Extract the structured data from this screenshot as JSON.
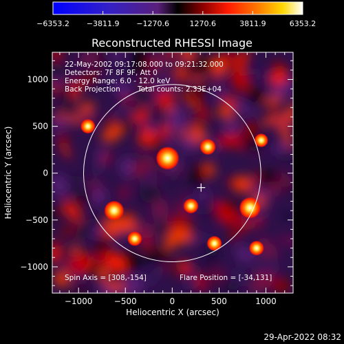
{
  "chart_data": {
    "type": "heatmap",
    "title": "Reconstructed RHESSI Image",
    "xlabel": "Heliocentric X (arcsec)",
    "ylabel": "Heliocentric Y (arcsec)",
    "xlim": [
      -1280,
      1290
    ],
    "ylim": [
      -1280,
      1290
    ],
    "x_ticks": [
      -1000,
      -500,
      0,
      500,
      1000
    ],
    "x_tick_labels": [
      "−1000",
      "−500",
      "0",
      "500",
      "1000"
    ],
    "y_ticks": [
      -1000,
      -500,
      0,
      500,
      1000
    ],
    "y_tick_labels": [
      "−1000",
      "−500",
      "0",
      "500",
      "1000"
    ],
    "colorbar": {
      "min": -6353.2,
      "max": 6353.2,
      "ticks": [
        -6353.2,
        -3811.9,
        -1270.6,
        1270.6,
        3811.9,
        6353.2
      ],
      "tick_labels": [
        "−6353.2",
        "−3811.9",
        "−1270.6",
        "1270.6",
        "3811.9",
        "6353.2"
      ]
    },
    "solar_limb_radius_arcsec": 946,
    "flare_marker": [
      308,
      -154
    ],
    "bright_sources": [
      {
        "x": -50,
        "y": 160,
        "value": 6353.2
      },
      {
        "x": 830,
        "y": -370,
        "value": 5500
      },
      {
        "x": -620,
        "y": -400,
        "value": 4800
      },
      {
        "x": 380,
        "y": 280,
        "value": 3000
      },
      {
        "x": 200,
        "y": -350,
        "value": 2600
      },
      {
        "x": -900,
        "y": 500,
        "value": 2400
      },
      {
        "x": -400,
        "y": -700,
        "value": 2400
      },
      {
        "x": 450,
        "y": -750,
        "value": 2600
      },
      {
        "x": 900,
        "y": -800,
        "value": 2500
      },
      {
        "x": 950,
        "y": 350,
        "value": 2000
      }
    ],
    "grid": false,
    "legend": "none"
  },
  "annotations": {
    "line1": "22-May-2002 09:17:08.000 to 09:21:32.000",
    "line2": "Detectors: 7F 8F 9F, Att 0",
    "line3": "Energy Range: 6.0 - 12.0 keV",
    "line4_left": "Back Projection",
    "line4_right": "Total counts: 2.33E+04",
    "spin_axis": "Spin Axis = [308,-154]",
    "flare_position": "Flare Position = [-34,131]"
  },
  "footer": {
    "timestamp": "29-Apr-2022 08:32"
  }
}
